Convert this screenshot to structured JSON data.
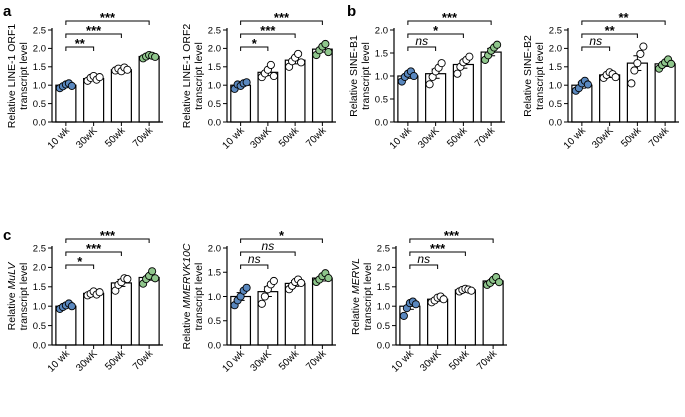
{
  "figure": {
    "colors": {
      "young": "#5a88bf",
      "mid": "#ffffff",
      "old": "#8fc68c",
      "axis": "#000000",
      "bar_fill": "#ffffff"
    },
    "panel_letters": [
      {
        "key": "a",
        "label": "a"
      },
      {
        "key": "b",
        "label": "b"
      },
      {
        "key": "c",
        "label": "c"
      }
    ]
  },
  "chart_data": [
    {
      "type": "bar",
      "panel": "a",
      "ylabel_lines": [
        "Relative LINE-1 ORF1",
        "transcript level"
      ],
      "categories": [
        "10 wk",
        "30wK",
        "50wk",
        "70wk"
      ],
      "values": [
        1.0,
        1.18,
        1.42,
        1.78
      ],
      "errors": [
        0.04,
        0.05,
        0.04,
        0.04
      ],
      "points": [
        [
          0.92,
          0.97,
          1.02,
          1.05,
          0.98
        ],
        [
          1.12,
          1.2,
          1.25,
          1.15,
          1.22
        ],
        [
          1.4,
          1.45,
          1.38,
          1.48,
          1.42
        ],
        [
          1.73,
          1.78,
          1.82,
          1.8,
          1.77
        ]
      ],
      "point_colors": [
        "young",
        "mid",
        "mid",
        "old"
      ],
      "ylim": [
        0,
        2.5
      ],
      "yticks": [
        0.0,
        0.5,
        1.0,
        1.5,
        2.0,
        2.5
      ],
      "ytick_labels": [
        "0.0",
        "0.5",
        "1.0",
        "1.5",
        "2.0",
        "2.5"
      ],
      "comparisons": [
        {
          "from": 0,
          "to": 1,
          "label": "**"
        },
        {
          "from": 0,
          "to": 2,
          "label": "***"
        },
        {
          "from": 0,
          "to": 3,
          "label": "***"
        }
      ]
    },
    {
      "type": "bar",
      "panel": "a",
      "ylabel_lines": [
        "Relative LINE-1 ORF2",
        "transcript level"
      ],
      "categories": [
        "10 wk",
        "30wK",
        "50wk",
        "70wk"
      ],
      "values": [
        1.0,
        1.35,
        1.68,
        1.98
      ],
      "errors": [
        0.05,
        0.09,
        0.1,
        0.08
      ],
      "points": [
        [
          0.9,
          1.02,
          0.98,
          1.05,
          1.08
        ],
        [
          1.22,
          1.32,
          1.42,
          1.55,
          1.25
        ],
        [
          1.5,
          1.65,
          1.75,
          1.85,
          1.62
        ],
        [
          1.82,
          1.95,
          2.05,
          2.12,
          1.9
        ]
      ],
      "point_colors": [
        "young",
        "mid",
        "mid",
        "old"
      ],
      "ylim": [
        0,
        2.5
      ],
      "yticks": [
        0.0,
        0.5,
        1.0,
        1.5,
        2.0,
        2.5
      ],
      "ytick_labels": [
        "0.0",
        "0.5",
        "1.0",
        "1.5",
        "2.0",
        "2.5"
      ],
      "comparisons": [
        {
          "from": 0,
          "to": 1,
          "label": "*"
        },
        {
          "from": 0,
          "to": 2,
          "label": "***"
        },
        {
          "from": 0,
          "to": 3,
          "label": "***"
        }
      ]
    },
    {
      "type": "bar",
      "panel": "b",
      "ylabel_lines": [
        "Relative SINE-B1",
        "transcript level"
      ],
      "categories": [
        "10 wk",
        "30wK",
        "50wk",
        "70wk"
      ],
      "values": [
        1.0,
        1.05,
        1.25,
        1.52
      ],
      "errors": [
        0.05,
        0.1,
        0.08,
        0.08
      ],
      "points": [
        [
          0.88,
          0.98,
          1.05,
          1.1,
          1.0
        ],
        [
          0.82,
          0.98,
          1.1,
          1.18,
          1.28
        ],
        [
          1.05,
          1.2,
          1.3,
          1.35,
          1.42
        ],
        [
          1.35,
          1.45,
          1.55,
          1.62,
          1.68
        ]
      ],
      "point_colors": [
        "young",
        "mid",
        "mid",
        "old"
      ],
      "ylim": [
        0,
        2.0
      ],
      "yticks": [
        0.0,
        0.5,
        1.0,
        1.5,
        2.0
      ],
      "ytick_labels": [
        "0.0",
        "0.5",
        "1.0",
        "1.5",
        "2.0"
      ],
      "comparisons": [
        {
          "from": 0,
          "to": 1,
          "label": "ns"
        },
        {
          "from": 0,
          "to": 2,
          "label": "*"
        },
        {
          "from": 0,
          "to": 3,
          "label": "***"
        }
      ]
    },
    {
      "type": "bar",
      "panel": "b",
      "ylabel_lines": [
        "Relative SINE-B2",
        "transcript level"
      ],
      "categories": [
        "10 wk",
        "30wK",
        "50wk",
        "70wk"
      ],
      "values": [
        1.0,
        1.28,
        1.6,
        1.58
      ],
      "errors": [
        0.08,
        0.07,
        0.2,
        0.07
      ],
      "points": [
        [
          0.85,
          0.92,
          1.05,
          1.12,
          1.02
        ],
        [
          1.2,
          1.28,
          1.35,
          1.3,
          1.22
        ],
        [
          1.05,
          1.4,
          1.6,
          1.85,
          2.05
        ],
        [
          1.45,
          1.55,
          1.62,
          1.7,
          1.58
        ]
      ],
      "point_colors": [
        "young",
        "mid",
        "mid",
        "old"
      ],
      "ylim": [
        0,
        2.5
      ],
      "yticks": [
        0.0,
        0.5,
        1.0,
        1.5,
        2.0,
        2.5
      ],
      "ytick_labels": [
        "0.0",
        "0.5",
        "1.0",
        "1.5",
        "2.0",
        "2.5"
      ],
      "comparisons": [
        {
          "from": 0,
          "to": 1,
          "label": "ns"
        },
        {
          "from": 0,
          "to": 2,
          "label": "**"
        },
        {
          "from": 0,
          "to": 3,
          "label": "**"
        }
      ]
    },
    {
      "type": "bar",
      "panel": "c",
      "ylabel_lines": [
        "Relative MuLV",
        "transcript level"
      ],
      "ylabel_italic_word": "MuLV",
      "categories": [
        "10 wk",
        "30wK",
        "50wk",
        "70wk"
      ],
      "values": [
        1.0,
        1.33,
        1.6,
        1.74
      ],
      "errors": [
        0.04,
        0.04,
        0.09,
        0.07
      ],
      "points": [
        [
          0.93,
          0.98,
          1.02,
          1.07,
          1.0
        ],
        [
          1.28,
          1.32,
          1.38,
          1.3,
          1.36
        ],
        [
          1.4,
          1.55,
          1.62,
          1.72,
          1.7
        ],
        [
          1.58,
          1.7,
          1.78,
          1.9,
          1.72
        ]
      ],
      "point_colors": [
        "young",
        "mid",
        "mid",
        "old"
      ],
      "ylim": [
        0,
        2.5
      ],
      "yticks": [
        0.0,
        0.5,
        1.0,
        1.5,
        2.0,
        2.5
      ],
      "ytick_labels": [
        "0.0",
        "0.5",
        "1.0",
        "1.5",
        "2.0",
        "2.5"
      ],
      "comparisons": [
        {
          "from": 0,
          "to": 1,
          "label": "*"
        },
        {
          "from": 0,
          "to": 2,
          "label": "***"
        },
        {
          "from": 0,
          "to": 3,
          "label": "***"
        }
      ]
    },
    {
      "type": "bar",
      "panel": "c",
      "ylabel_lines": [
        "Relative MMERVK10C",
        "transcript level"
      ],
      "ylabel_italic_word": "MMERVK10C",
      "categories": [
        "10 wk",
        "30wK",
        "50wk",
        "70wk"
      ],
      "values": [
        1.0,
        1.1,
        1.27,
        1.38
      ],
      "errors": [
        0.08,
        0.1,
        0.06,
        0.06
      ],
      "points": [
        [
          0.82,
          0.92,
          1.0,
          1.12,
          1.18
        ],
        [
          0.85,
          1.0,
          1.15,
          1.25,
          1.32
        ],
        [
          1.15,
          1.22,
          1.3,
          1.35,
          1.28
        ],
        [
          1.3,
          1.35,
          1.42,
          1.48,
          1.38
        ]
      ],
      "point_colors": [
        "young",
        "mid",
        "mid",
        "old"
      ],
      "ylim": [
        0,
        2.0
      ],
      "yticks": [
        0.0,
        0.5,
        1.0,
        1.5,
        2.0
      ],
      "ytick_labels": [
        "0.0",
        "0.5",
        "1.0",
        "1.5",
        "2.0"
      ],
      "comparisons": [
        {
          "from": 0,
          "to": 1,
          "label": "ns"
        },
        {
          "from": 0,
          "to": 2,
          "label": "ns"
        },
        {
          "from": 0,
          "to": 3,
          "label": "*"
        }
      ]
    },
    {
      "type": "bar",
      "panel": "c",
      "ylabel_lines": [
        "Relative MERVL",
        "transcript level"
      ],
      "ylabel_italic_word": "MERVL",
      "categories": [
        "10 wk",
        "30wK",
        "50wk",
        "70wk"
      ],
      "values": [
        1.0,
        1.18,
        1.42,
        1.65
      ],
      "errors": [
        0.08,
        0.05,
        0.03,
        0.06
      ],
      "points": [
        [
          0.75,
          0.95,
          1.08,
          1.12,
          1.05
        ],
        [
          1.1,
          1.15,
          1.22,
          1.25,
          1.18
        ],
        [
          1.38,
          1.42,
          1.45,
          1.43,
          1.4
        ],
        [
          1.55,
          1.6,
          1.68,
          1.75,
          1.62
        ]
      ],
      "point_colors": [
        "young",
        "mid",
        "mid",
        "old"
      ],
      "ylim": [
        0,
        2.5
      ],
      "yticks": [
        0.0,
        0.5,
        1.0,
        1.5,
        2.0,
        2.5
      ],
      "ytick_labels": [
        "0.0",
        "0.5",
        "1.0",
        "1.5",
        "2.0",
        "2.5"
      ],
      "comparisons": [
        {
          "from": 0,
          "to": 1,
          "label": "ns"
        },
        {
          "from": 0,
          "to": 2,
          "label": "***"
        },
        {
          "from": 0,
          "to": 3,
          "label": "***"
        }
      ]
    }
  ]
}
